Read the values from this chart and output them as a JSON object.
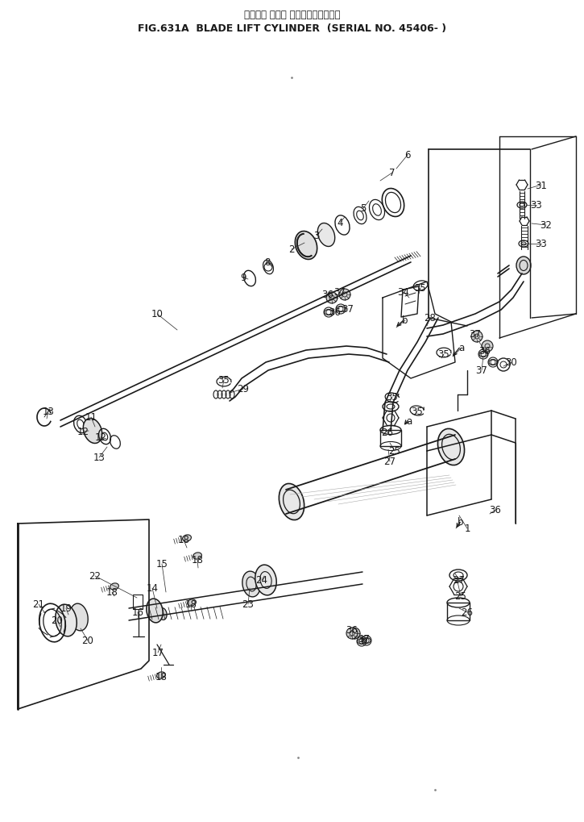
{
  "title_japanese": "ブレード リフト シリンダ　適用号機",
  "title_english": "FIG.631A  BLADE LIFT CYLINDER  (SERIAL NO. 45406- )",
  "bg_color": "#ffffff",
  "lc": "#1a1a1a",
  "dot1": [
    362,
    97
  ],
  "dot2": [
    370,
    940
  ],
  "dot3": [
    540,
    980
  ],
  "labels": [
    [
      "1",
      580,
      656
    ],
    [
      "2",
      362,
      310
    ],
    [
      "3",
      393,
      293
    ],
    [
      "4",
      422,
      277
    ],
    [
      "5",
      451,
      259
    ],
    [
      "6",
      506,
      193
    ],
    [
      "7",
      487,
      215
    ],
    [
      "8",
      332,
      326
    ],
    [
      "9",
      302,
      345
    ],
    [
      "10",
      195,
      390
    ],
    [
      "11",
      113,
      518
    ],
    [
      "12",
      103,
      536
    ],
    [
      "12",
      125,
      543
    ],
    [
      "13",
      60,
      510
    ],
    [
      "13",
      123,
      568
    ],
    [
      "14",
      189,
      730
    ],
    [
      "15",
      201,
      700
    ],
    [
      "16",
      171,
      760
    ],
    [
      "17",
      196,
      810
    ],
    [
      "18",
      228,
      670
    ],
    [
      "18",
      245,
      695
    ],
    [
      "18",
      237,
      750
    ],
    [
      "18",
      200,
      840
    ],
    [
      "18",
      139,
      735
    ],
    [
      "19",
      82,
      755
    ],
    [
      "20",
      71,
      770
    ],
    [
      "20",
      109,
      795
    ],
    [
      "21",
      48,
      750
    ],
    [
      "22",
      118,
      715
    ],
    [
      "23",
      308,
      750
    ],
    [
      "24",
      325,
      720
    ],
    [
      "25",
      490,
      560
    ],
    [
      "25",
      572,
      740
    ],
    [
      "26",
      481,
      537
    ],
    [
      "26",
      580,
      760
    ],
    [
      "27",
      484,
      573
    ],
    [
      "27",
      570,
      720
    ],
    [
      "28",
      534,
      395
    ],
    [
      "29",
      302,
      483
    ],
    [
      "30",
      635,
      450
    ],
    [
      "31",
      672,
      230
    ],
    [
      "32",
      678,
      280
    ],
    [
      "33",
      666,
      255
    ],
    [
      "33",
      672,
      303
    ],
    [
      "34",
      501,
      363
    ],
    [
      "35",
      278,
      472
    ],
    [
      "35",
      522,
      358
    ],
    [
      "35",
      551,
      440
    ],
    [
      "35",
      487,
      493
    ],
    [
      "35",
      518,
      510
    ],
    [
      "36",
      407,
      366
    ],
    [
      "36",
      416,
      388
    ],
    [
      "36",
      602,
      436
    ],
    [
      "36",
      615,
      633
    ],
    [
      "36",
      437,
      782
    ],
    [
      "37",
      422,
      363
    ],
    [
      "37",
      432,
      384
    ],
    [
      "37",
      590,
      415
    ],
    [
      "37",
      598,
      460
    ],
    [
      "37",
      452,
      793
    ],
    [
      "a",
      573,
      432
    ],
    [
      "a",
      508,
      523
    ],
    [
      "b",
      503,
      398
    ],
    [
      "b",
      572,
      648
    ]
  ]
}
